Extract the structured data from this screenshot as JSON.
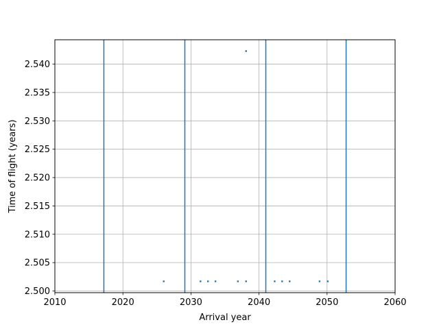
{
  "chart_data": {
    "type": "scatter",
    "title": "",
    "xlabel": "Arrival year",
    "ylabel": "Time of flight (years)",
    "xlim": [
      2010,
      2060
    ],
    "ylim": [
      2.4997,
      2.5443
    ],
    "x_ticks": [
      2010,
      2020,
      2030,
      2040,
      2050,
      2060
    ],
    "x_tick_labels": [
      "2010",
      "2020",
      "2030",
      "2040",
      "2050",
      "2060"
    ],
    "y_ticks": [
      2.5,
      2.505,
      2.51,
      2.515,
      2.52,
      2.525,
      2.53,
      2.535,
      2.54
    ],
    "y_tick_labels": [
      "2.500",
      "2.505",
      "2.510",
      "2.515",
      "2.520",
      "2.525",
      "2.530",
      "2.535",
      "2.540"
    ],
    "grid": true,
    "legend": "none",
    "series_color": "#1f77b4",
    "vertical_lines_x": [
      2017.2,
      2029.1,
      2041.0,
      2052.8
    ],
    "points": [
      {
        "x": 2026.0,
        "y": 2.5017
      },
      {
        "x": 2031.4,
        "y": 2.5017
      },
      {
        "x": 2032.5,
        "y": 2.5017
      },
      {
        "x": 2033.6,
        "y": 2.5017
      },
      {
        "x": 2036.9,
        "y": 2.5017
      },
      {
        "x": 2038.1,
        "y": 2.5017
      },
      {
        "x": 2038.1,
        "y": 2.5423
      },
      {
        "x": 2042.3,
        "y": 2.5017
      },
      {
        "x": 2043.4,
        "y": 2.5017
      },
      {
        "x": 2044.5,
        "y": 2.5017
      },
      {
        "x": 2048.9,
        "y": 2.5017
      },
      {
        "x": 2050.1,
        "y": 2.5017
      }
    ]
  }
}
